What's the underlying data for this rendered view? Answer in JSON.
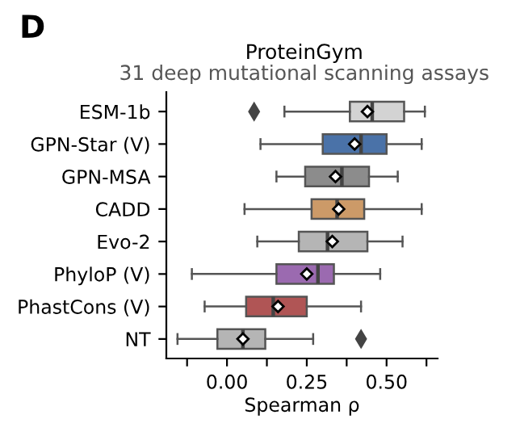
{
  "chart_data": {
    "type": "box",
    "title": "ProteinGym",
    "subtitle": "31 deep mutational scanning assays",
    "xlabel": "Spearman ρ",
    "annotations": [
      "D"
    ],
    "orientation": "horizontal",
    "categories": [
      "ESM-1b",
      "GPN-Star (V)",
      "GPN-MSA",
      "CADD",
      "Evo-2",
      "PhyloP (V)",
      "PhastCons (V)",
      "NT"
    ],
    "colors": [
      "#d3d3d3",
      "#4a72a8",
      "#8c8c8c",
      "#cc9a68",
      "#b5b5b5",
      "#9b6ab0",
      "#b05555",
      "#b5b5b5"
    ],
    "boxes": [
      {
        "low": 0.18,
        "q1": 0.385,
        "median": 0.455,
        "q3": 0.555,
        "high": 0.62,
        "mean": 0.44,
        "outliers": [
          0.085
        ]
      },
      {
        "low": 0.105,
        "q1": 0.3,
        "median": 0.42,
        "q3": 0.5,
        "high": 0.61,
        "mean": 0.4
      },
      {
        "low": 0.155,
        "q1": 0.245,
        "median": 0.36,
        "q3": 0.445,
        "high": 0.535,
        "mean": 0.34
      },
      {
        "low": 0.055,
        "q1": 0.265,
        "median": 0.345,
        "q3": 0.43,
        "high": 0.61,
        "mean": 0.35
      },
      {
        "low": 0.095,
        "q1": 0.225,
        "median": 0.315,
        "q3": 0.44,
        "high": 0.55,
        "mean": 0.33
      },
      {
        "low": -0.11,
        "q1": 0.155,
        "median": 0.285,
        "q3": 0.335,
        "high": 0.48,
        "mean": 0.25
      },
      {
        "low": -0.07,
        "q1": 0.06,
        "median": 0.145,
        "q3": 0.25,
        "high": 0.42,
        "mean": 0.16
      },
      {
        "low": -0.155,
        "q1": -0.03,
        "median": 0.05,
        "q3": 0.12,
        "high": 0.27,
        "mean": 0.05,
        "outliers": [
          0.42
        ]
      }
    ],
    "xlim": [
      -0.19,
      0.66
    ],
    "xticks": [
      {
        "value": -0.125,
        "label": null
      },
      {
        "value": 0,
        "label": "0.00"
      },
      {
        "value": 0.125,
        "label": null
      },
      {
        "value": 0.25,
        "label": "0.25"
      },
      {
        "value": 0.375,
        "label": null
      },
      {
        "value": 0.5,
        "label": "0.50"
      },
      {
        "value": 0.625,
        "label": null
      }
    ],
    "grid": false,
    "legend": false
  }
}
